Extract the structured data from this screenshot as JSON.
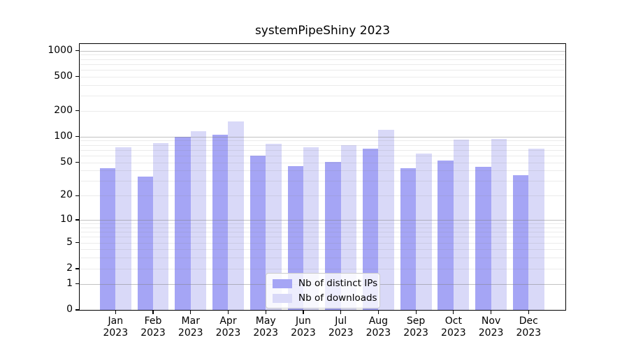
{
  "title": "systemPipeShiny 2023",
  "colors": {
    "ips_bar": "#a5a5f5",
    "downloads_bar": "#d9d9f8",
    "grid_major": "#c0c0c0",
    "grid_minor": "#ebebeb",
    "spine": "#000000",
    "legend_border": "#cccccc"
  },
  "legend": {
    "items": [
      {
        "label": "Nb of distinct IPs",
        "series_key": "ips"
      },
      {
        "label": "Nb of downloads",
        "series_key": "downloads"
      }
    ]
  },
  "chart_data": {
    "type": "bar",
    "title": "systemPipeShiny 2023",
    "categories": [
      "Jan 2023",
      "Feb 2023",
      "Mar 2023",
      "Apr 2023",
      "May 2023",
      "Jun 2023",
      "Jul 2023",
      "Aug 2023",
      "Sep 2023",
      "Oct 2023",
      "Nov 2023",
      "Dec 2023"
    ],
    "series": [
      {
        "name": "Nb of distinct IPs",
        "color": "#a5a5f5",
        "values": [
          43,
          34,
          100,
          105,
          60,
          45,
          51,
          73,
          43,
          53,
          44,
          35
        ]
      },
      {
        "name": "Nb of downloads",
        "color": "#d9d9f8",
        "values": [
          75,
          85,
          115,
          150,
          83,
          75,
          79,
          120,
          64,
          93,
          94,
          73
        ]
      }
    ],
    "xlabel": "",
    "ylabel": "",
    "yscale": "log1p",
    "ylim": [
      0,
      1200
    ],
    "y_labeled_ticks": [
      0,
      1,
      2,
      5,
      10,
      20,
      50,
      100,
      200,
      500,
      1000
    ],
    "y_major_gridlines": [
      1,
      10,
      100,
      1000
    ],
    "y_minor_gridlines": [
      2,
      3,
      4,
      5,
      6,
      7,
      8,
      9,
      20,
      30,
      40,
      50,
      60,
      70,
      80,
      90,
      200,
      300,
      400,
      500,
      600,
      700,
      800,
      900
    ],
    "grid": true,
    "legend_position": "lower center"
  }
}
